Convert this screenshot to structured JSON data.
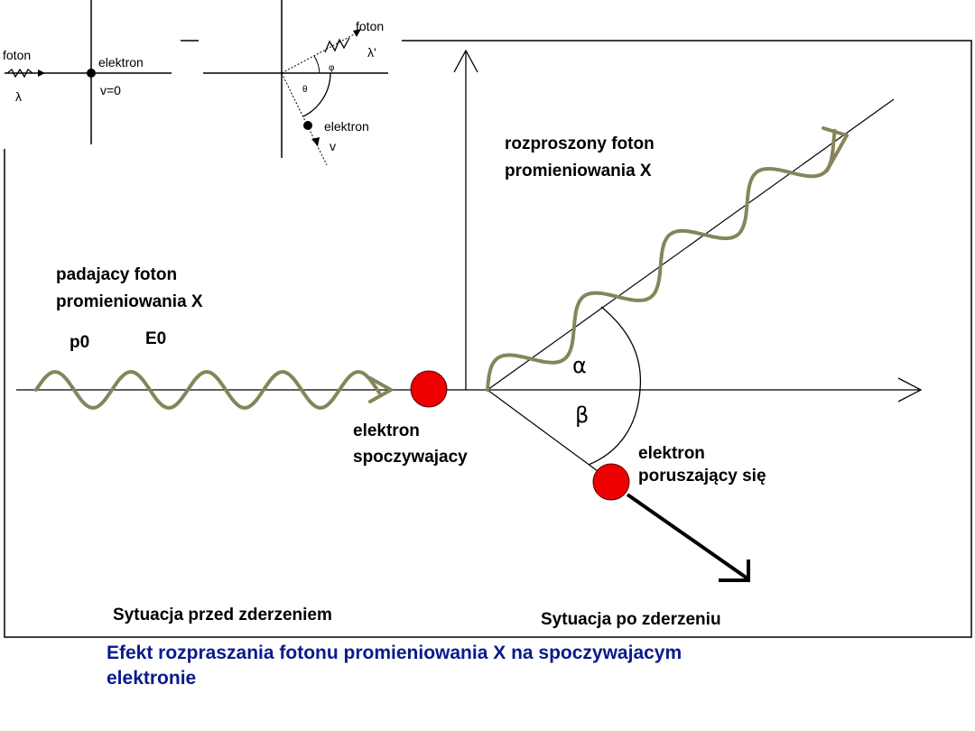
{
  "inset_before": {
    "photon_label": "foton",
    "wavelength_label": "λ",
    "electron_label": "elektron",
    "velocity_label": "v=0"
  },
  "inset_after": {
    "photon_label": "foton",
    "wavelength_label": "λ'",
    "phi_label": "φ",
    "theta_label": "θ",
    "electron_label": "elektron",
    "velocity_label": "v"
  },
  "main": {
    "incident_photon_line1": "padajacy foton",
    "incident_photon_line2": "promieniowania X",
    "momentum_label": "p0",
    "energy_label": "E0",
    "resting_electron_line1": "elektron",
    "resting_electron_line2": "spoczywajacy",
    "scattered_photon_line1": "rozproszony foton",
    "scattered_photon_line2": "promieniowania X",
    "alpha_label": "α",
    "beta_label": "β",
    "moving_electron_line1": "elektron",
    "moving_electron_line2": "poruszający się",
    "before_caption": "Sytuacja przed zderzeniem",
    "after_caption": "Sytuacja po zderzeniu"
  },
  "caption": {
    "line1": "Efekt rozpraszania fotonu promieniowania X na spoczywajacym",
    "line2": "elektronie"
  },
  "colors": {
    "wave": "#86855a",
    "electron": "#ee0000",
    "caption": "#0a1a8c"
  }
}
